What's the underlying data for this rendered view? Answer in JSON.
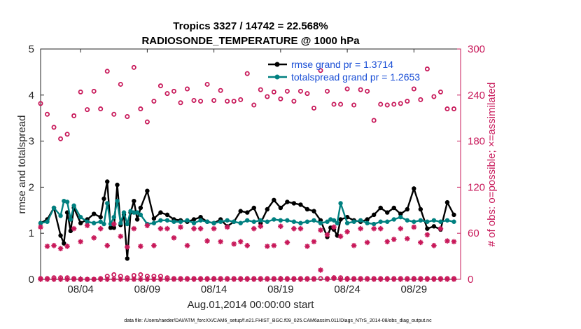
{
  "chart_data": {
    "type": "line",
    "title_line1": "Tropics 3327 / 14742 = 22.568%",
    "title_line2": "RADIOSONDE_TEMPERATURE @ 1000 hPa",
    "xlabel": "Aug.01,2014 00:00:00 start",
    "ylabel": "rmse and totalspread",
    "ylabel_right": "# of obs: o=possible; ×=assimilated",
    "footer": "data file: /Users/raeder/DAI/ATM_forcXX/CAM6_setup/f.e21.FHIST_BGC.f09_025.CAM6assim.011/Diags_NTrS_2014-08/obs_diag_output.nc",
    "xlim": [
      0.5,
      32.0
    ],
    "ylim": [
      0,
      5
    ],
    "ylim_right": [
      0,
      300
    ],
    "x_ticks": [
      3.5,
      8.5,
      13.5,
      18.5,
      23.5,
      28.5
    ],
    "x_tick_labels": [
      "08/04",
      "08/09",
      "08/14",
      "08/19",
      "08/24",
      "08/29"
    ],
    "y_ticks": [
      0,
      1,
      2,
      3,
      4,
      5
    ],
    "y_tick_labels": [
      "0",
      "1",
      "2",
      "3",
      "4",
      "5"
    ],
    "y_right_ticks": [
      0,
      60,
      120,
      180,
      240,
      300
    ],
    "y_right_tick_labels": [
      "0",
      "60",
      "120",
      "180",
      "240",
      "300"
    ],
    "legend": [
      {
        "label": "rmse grand pr = 1.3714",
        "color": "#000000"
      },
      {
        "label": "totalspread grand pr = 1.2653",
        "color": "#008080"
      }
    ],
    "series": [
      {
        "name": "rmse",
        "color": "#000000",
        "x": [
          0.5,
          1.0,
          1.5,
          2.0,
          2.25,
          2.5,
          2.75,
          3.0,
          3.5,
          4.0,
          4.5,
          5.0,
          5.25,
          5.5,
          5.75,
          6.0,
          6.25,
          6.5,
          6.75,
          7.0,
          7.25,
          7.5,
          7.75,
          8.0,
          8.5,
          9.0,
          9.5,
          10.0,
          10.5,
          11.0,
          11.5,
          12.0,
          12.5,
          13.0,
          13.5,
          14.0,
          14.5,
          15.0,
          15.5,
          16.0,
          16.5,
          17.0,
          17.5,
          18.0,
          18.5,
          19.0,
          19.5,
          20.0,
          20.5,
          21.0,
          21.5,
          22.0,
          22.25,
          22.5,
          22.75,
          23.0,
          23.5,
          24.0,
          24.5,
          25.0,
          25.5,
          26.0,
          26.5,
          27.0,
          27.5,
          28.0,
          28.5,
          29.0,
          29.5,
          30.0,
          30.5,
          31.0,
          31.5
        ],
        "y": [
          1.22,
          1.3,
          1.55,
          0.95,
          0.78,
          1.45,
          1.05,
          1.55,
          1.22,
          1.3,
          1.42,
          1.35,
          1.75,
          2.12,
          1.12,
          1.12,
          2.05,
          1.18,
          1.4,
          0.45,
          1.45,
          1.7,
          1.3,
          1.55,
          1.92,
          1.32,
          1.45,
          1.4,
          1.3,
          1.28,
          1.25,
          1.3,
          1.35,
          1.25,
          1.22,
          1.3,
          1.15,
          1.25,
          1.48,
          1.45,
          1.55,
          1.22,
          1.52,
          1.72,
          1.55,
          1.68,
          1.65,
          1.62,
          1.52,
          1.48,
          1.28,
          0.92,
          1.12,
          1.08,
          0.95,
          1.3,
          1.35,
          1.28,
          1.25,
          1.3,
          1.4,
          1.55,
          1.45,
          1.55,
          1.42,
          1.52,
          1.97,
          1.52,
          1.1,
          1.15,
          1.08,
          1.67,
          1.4
        ]
      },
      {
        "name": "totalspread",
        "color": "#008080",
        "x": [
          0.5,
          1.0,
          1.5,
          2.0,
          2.25,
          2.5,
          2.75,
          3.0,
          3.5,
          4.0,
          4.5,
          5.0,
          5.25,
          5.5,
          5.75,
          6.0,
          6.25,
          6.5,
          6.75,
          7.0,
          7.25,
          7.5,
          7.75,
          8.0,
          8.5,
          9.0,
          9.5,
          10.0,
          10.5,
          11.0,
          11.5,
          12.0,
          12.5,
          13.0,
          13.5,
          14.0,
          14.5,
          15.0,
          15.5,
          16.0,
          16.5,
          17.0,
          17.5,
          18.0,
          18.5,
          19.0,
          19.5,
          20.0,
          20.5,
          21.0,
          21.5,
          22.0,
          22.25,
          22.5,
          22.75,
          23.0,
          23.5,
          24.0,
          24.5,
          25.0,
          25.5,
          26.0,
          26.5,
          27.0,
          27.5,
          28.0,
          28.5,
          29.0,
          29.5,
          30.0,
          30.5,
          31.0,
          31.5
        ],
        "y": [
          1.22,
          1.25,
          1.55,
          1.38,
          1.7,
          1.68,
          1.3,
          1.6,
          1.35,
          1.25,
          1.22,
          1.25,
          1.2,
          1.65,
          1.2,
          1.35,
          1.7,
          1.22,
          1.45,
          1.2,
          1.48,
          1.45,
          1.45,
          1.4,
          1.2,
          1.22,
          1.28,
          1.28,
          1.25,
          1.25,
          1.28,
          1.22,
          1.28,
          1.25,
          1.22,
          1.25,
          1.28,
          1.25,
          1.22,
          1.28,
          1.25,
          1.28,
          1.25,
          1.3,
          1.28,
          1.28,
          1.25,
          1.22,
          1.25,
          1.28,
          1.22,
          1.25,
          1.3,
          1.28,
          1.22,
          1.65,
          1.22,
          1.25,
          1.28,
          1.22,
          1.2,
          1.25,
          1.25,
          1.3,
          1.35,
          1.28,
          1.25,
          1.28,
          1.25,
          1.28,
          1.25,
          1.28,
          1.25
        ]
      },
      {
        "name": "obs_possible",
        "color": "#c8195a",
        "axis": "right",
        "marker": "o",
        "x": [
          0.5,
          1.0,
          1.5,
          2.0,
          2.5,
          3.0,
          3.5,
          4.0,
          4.5,
          5.0,
          5.5,
          6.0,
          6.5,
          7.0,
          7.5,
          8.0,
          8.5,
          9.0,
          9.5,
          10.0,
          10.5,
          11.0,
          11.5,
          12.0,
          12.5,
          13.0,
          13.5,
          14.0,
          14.5,
          15.0,
          15.5,
          16.0,
          16.5,
          17.0,
          17.5,
          18.0,
          18.5,
          19.0,
          19.5,
          20.0,
          20.5,
          21.0,
          21.5,
          22.0,
          22.5,
          23.0,
          23.5,
          24.0,
          24.5,
          25.0,
          25.5,
          26.0,
          26.5,
          27.0,
          27.5,
          28.0,
          28.5,
          29.0,
          29.5,
          30.0,
          30.5,
          31.0,
          31.5
        ],
        "y": [
          229,
          215,
          198,
          183,
          189,
          213,
          244,
          221,
          245,
          222,
          271,
          215,
          254,
          212,
          276,
          222,
          205,
          232,
          252,
          242,
          245,
          230,
          248,
          233,
          232,
          254,
          233,
          246,
          232,
          232,
          234,
          268,
          227,
          247,
          238,
          244,
          235,
          245,
          232,
          245,
          242,
          223,
          272,
          245,
          228,
          228,
          248,
          227,
          247,
          245,
          207,
          228,
          227,
          228,
          229,
          232,
          248,
          234,
          274,
          238,
          244,
          222,
          222
        ],
        "y_low": [
          1,
          1,
          2,
          2,
          2,
          1,
          0,
          0,
          0,
          1,
          4,
          6,
          4,
          2,
          5,
          6,
          4,
          4,
          4,
          2,
          1,
          1,
          1,
          1,
          1,
          1,
          1,
          1,
          1,
          1,
          1,
          1,
          1,
          1,
          1,
          1,
          1,
          1,
          1,
          1,
          1,
          1,
          1,
          1,
          1,
          2,
          1,
          1,
          1,
          1,
          1,
          1,
          1,
          1,
          1,
          1,
          1,
          1,
          1,
          1,
          1,
          1,
          1
        ]
      },
      {
        "name": "obs_assimilated",
        "color": "#c8195a",
        "axis": "right",
        "marker": "*",
        "x": [
          0.5,
          1.0,
          1.5,
          2.0,
          2.5,
          3.0,
          3.5,
          4.0,
          4.5,
          5.0,
          5.5,
          6.0,
          6.5,
          7.0,
          7.5,
          8.0,
          8.5,
          9.0,
          9.5,
          10.0,
          10.5,
          11.0,
          11.5,
          12.0,
          12.5,
          13.0,
          13.5,
          14.0,
          14.5,
          15.0,
          15.5,
          16.0,
          16.5,
          17.0,
          17.5,
          18.0,
          18.5,
          19.0,
          19.5,
          20.0,
          20.5,
          21.0,
          21.5,
          22.0,
          22.5,
          23.0,
          23.5,
          24.0,
          24.5,
          25.0,
          25.5,
          26.0,
          26.5,
          27.0,
          27.5,
          28.0,
          28.5,
          29.0,
          29.5,
          30.0,
          30.5,
          31.0,
          31.5
        ],
        "y": [
          68,
          43,
          44,
          40,
          43,
          66,
          49,
          70,
          54,
          66,
          44,
          72,
          56,
          42,
          66,
          43,
          70,
          44,
          66,
          66,
          54,
          68,
          44,
          66,
          66,
          50,
          66,
          49,
          68,
          46,
          49,
          44,
          66,
          69,
          43,
          44,
          69,
          48,
          66,
          66,
          43,
          49,
          64,
          58,
          68,
          56,
          62,
          44,
          66,
          48,
          66,
          66,
          49,
          52,
          66,
          53,
          68,
          48,
          58,
          44,
          66,
          50,
          49
        ],
        "y_low": [
          0,
          0,
          0,
          0,
          0,
          0,
          0,
          0,
          0,
          0,
          0,
          0,
          0,
          0,
          0,
          0,
          0,
          0,
          0,
          0,
          0,
          0,
          0,
          0,
          0,
          0,
          0,
          0,
          0,
          0,
          0,
          0,
          0,
          0,
          0,
          0,
          0,
          0,
          0,
          0,
          0,
          0,
          12,
          0,
          2,
          0,
          0,
          0,
          0,
          0,
          0,
          0,
          0,
          0,
          0,
          0,
          0,
          0,
          0,
          0,
          0,
          0,
          0
        ]
      }
    ]
  }
}
